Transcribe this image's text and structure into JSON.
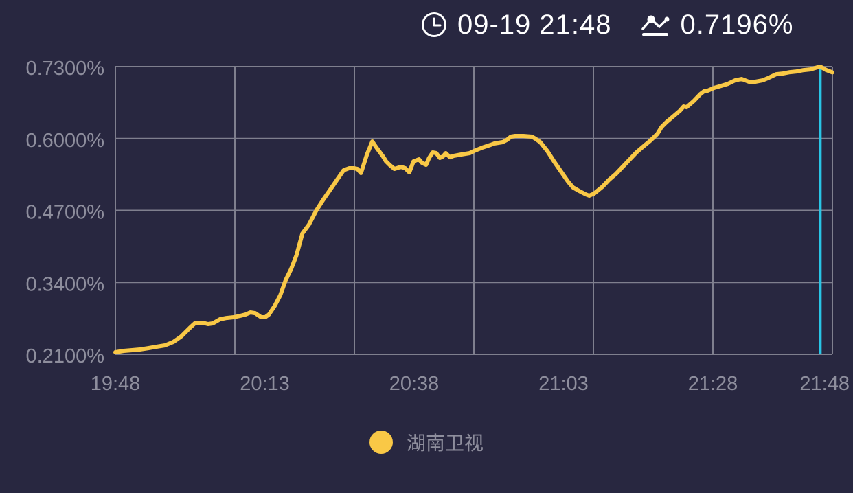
{
  "header": {
    "datetime": "09-19 21:48",
    "value": "0.7196%"
  },
  "legend": {
    "series_label": "湖南卫视"
  },
  "colors": {
    "background": "#282740",
    "grid": "#7f7f8e",
    "axis_label": "#8e8e9d",
    "header_text": "#ffffff",
    "series_yellow": "#f9c846",
    "marker_cyan": "#29c5e6"
  },
  "chart_data": {
    "type": "line",
    "title": "",
    "xlabel": "",
    "ylabel": "",
    "legend_position": "bottom",
    "grid_border": true,
    "x_axis": {
      "start": "19:48",
      "end": "21:48",
      "range_minutes": [
        0,
        120
      ],
      "tick_labels": [
        "19:48",
        "20:13",
        "20:38",
        "21:03",
        "21:28",
        "21:48"
      ],
      "tick_minutes": [
        0,
        25,
        50,
        75,
        100,
        120
      ],
      "grid_minutes": [
        0,
        20,
        40,
        60,
        80,
        100,
        120
      ]
    },
    "y_axis": {
      "unit": "%",
      "range": [
        0.21,
        0.73
      ],
      "tick_labels": [
        "0.7300%",
        "0.6000%",
        "0.4700%",
        "0.3400%",
        "0.2100%"
      ],
      "tick_values": [
        0.73,
        0.6,
        0.47,
        0.34,
        0.21
      ]
    },
    "current_time_marker": {
      "t_min": 118,
      "color": "#29c5e6"
    },
    "series": [
      {
        "name": "湖南卫视",
        "color": "#f9c846",
        "points": [
          [
            0,
            0.2137
          ],
          [
            1.4,
            0.2162
          ],
          [
            2.8,
            0.2174
          ],
          [
            4.1,
            0.2187
          ],
          [
            5.5,
            0.2211
          ],
          [
            6.9,
            0.2236
          ],
          [
            8.3,
            0.2261
          ],
          [
            9.7,
            0.2323
          ],
          [
            11,
            0.2422
          ],
          [
            12.4,
            0.2571
          ],
          [
            13.4,
            0.2671
          ],
          [
            14.6,
            0.2671
          ],
          [
            15.5,
            0.2646
          ],
          [
            16.3,
            0.2658
          ],
          [
            17.5,
            0.2733
          ],
          [
            18.6,
            0.2757
          ],
          [
            19.8,
            0.277
          ],
          [
            20.9,
            0.2795
          ],
          [
            21.8,
            0.282
          ],
          [
            22.6,
            0.2857
          ],
          [
            23.4,
            0.2844
          ],
          [
            24.4,
            0.277
          ],
          [
            25.1,
            0.2772
          ],
          [
            25.7,
            0.282
          ],
          [
            26.7,
            0.2981
          ],
          [
            27.6,
            0.3167
          ],
          [
            28.5,
            0.344
          ],
          [
            29.4,
            0.3639
          ],
          [
            30.3,
            0.3887
          ],
          [
            31.3,
            0.4284
          ],
          [
            32.4,
            0.4446
          ],
          [
            33.6,
            0.4694
          ],
          [
            34.7,
            0.488
          ],
          [
            35.9,
            0.5066
          ],
          [
            37,
            0.524
          ],
          [
            38.2,
            0.5426
          ],
          [
            39.1,
            0.5463
          ],
          [
            39.9,
            0.5463
          ],
          [
            40.5,
            0.5451
          ],
          [
            41.1,
            0.5376
          ],
          [
            42.1,
            0.5711
          ],
          [
            43,
            0.5947
          ],
          [
            43.7,
            0.5835
          ],
          [
            44.8,
            0.5674
          ],
          [
            45.3,
            0.5587
          ],
          [
            46,
            0.5513
          ],
          [
            46.7,
            0.5451
          ],
          [
            47.8,
            0.5488
          ],
          [
            48.5,
            0.5463
          ],
          [
            49.2,
            0.5389
          ],
          [
            49.9,
            0.5587
          ],
          [
            50.8,
            0.5624
          ],
          [
            51.3,
            0.5562
          ],
          [
            52,
            0.5525
          ],
          [
            52.5,
            0.5649
          ],
          [
            53.1,
            0.5749
          ],
          [
            53.7,
            0.5736
          ],
          [
            54.3,
            0.5649
          ],
          [
            54.8,
            0.5674
          ],
          [
            55.3,
            0.5736
          ],
          [
            56,
            0.5661
          ],
          [
            56.6,
            0.5686
          ],
          [
            57.9,
            0.5711
          ],
          [
            59.3,
            0.5736
          ],
          [
            60,
            0.5773
          ],
          [
            61.4,
            0.5835
          ],
          [
            62.8,
            0.5885
          ],
          [
            63.4,
            0.591
          ],
          [
            64.8,
            0.5935
          ],
          [
            65.5,
            0.5972
          ],
          [
            66.2,
            0.6034
          ],
          [
            66.9,
            0.6047
          ],
          [
            68.3,
            0.6047
          ],
          [
            69.7,
            0.6034
          ],
          [
            70.3,
            0.5997
          ],
          [
            71.1,
            0.5935
          ],
          [
            72.3,
            0.5773
          ],
          [
            73.4,
            0.5587
          ],
          [
            74.6,
            0.5401
          ],
          [
            75.8,
            0.5215
          ],
          [
            76.6,
            0.5116
          ],
          [
            77.6,
            0.5054
          ],
          [
            78.7,
            0.4992
          ],
          [
            79.3,
            0.4967
          ],
          [
            80.1,
            0.5004
          ],
          [
            81.5,
            0.5128
          ],
          [
            82.6,
            0.5252
          ],
          [
            83.8,
            0.5364
          ],
          [
            84.9,
            0.5488
          ],
          [
            86.1,
            0.5624
          ],
          [
            87.2,
            0.5749
          ],
          [
            88.4,
            0.586
          ],
          [
            89.5,
            0.5959
          ],
          [
            90.7,
            0.6083
          ],
          [
            91.4,
            0.6208
          ],
          [
            92.2,
            0.6294
          ],
          [
            93.3,
            0.6394
          ],
          [
            94.5,
            0.6505
          ],
          [
            95.1,
            0.658
          ],
          [
            95.6,
            0.6567
          ],
          [
            96.8,
            0.6679
          ],
          [
            97.9,
            0.6803
          ],
          [
            98.5,
            0.6853
          ],
          [
            99.1,
            0.6865
          ],
          [
            100.2,
            0.6915
          ],
          [
            101.4,
            0.6952
          ],
          [
            102.5,
            0.6989
          ],
          [
            103.7,
            0.7051
          ],
          [
            104.8,
            0.7076
          ],
          [
            106,
            0.7027
          ],
          [
            107.1,
            0.7027
          ],
          [
            108.3,
            0.7051
          ],
          [
            109.4,
            0.71
          ],
          [
            110.6,
            0.7162
          ],
          [
            111.7,
            0.7175
          ],
          [
            112.9,
            0.72
          ],
          [
            114,
            0.7212
          ],
          [
            115.2,
            0.7237
          ],
          [
            116.3,
            0.7249
          ],
          [
            117.5,
            0.7287
          ],
          [
            118,
            0.7299
          ],
          [
            119,
            0.7237
          ],
          [
            120,
            0.7196
          ]
        ]
      }
    ]
  }
}
